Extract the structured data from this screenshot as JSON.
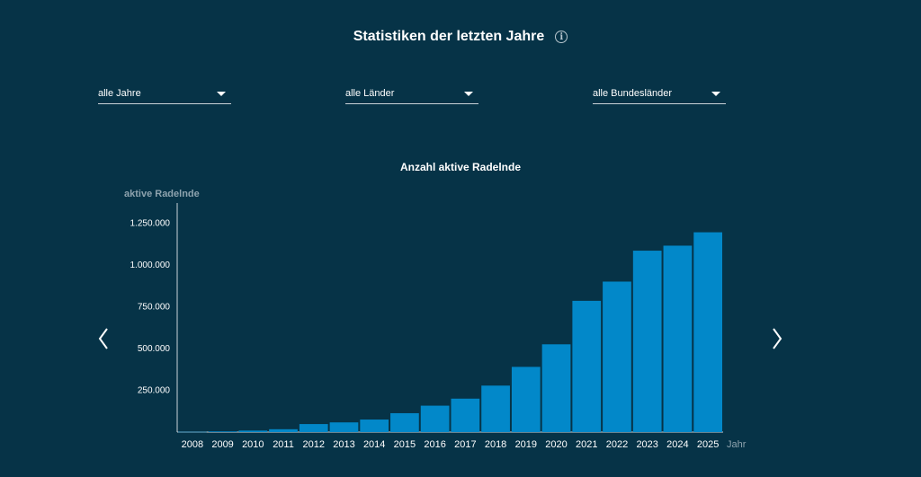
{
  "header": {
    "title": "Statistiken der letzten Jahre",
    "info_icon": "info-icon"
  },
  "filters": {
    "year": "alle Jahre",
    "country": "alle Länder",
    "state": "alle Bundesländer"
  },
  "nav": {
    "prev_icon": "chevron-left-icon",
    "next_icon": "chevron-right-icon"
  },
  "colors": {
    "background": "#063347",
    "bar": "#0288c9"
  },
  "chart_data": {
    "type": "bar",
    "title": "Anzahl aktive Radelnde",
    "ylabel": "aktive Radelnde",
    "xlabel": "Jahr",
    "categories": [
      "2008",
      "2009",
      "2010",
      "2011",
      "2012",
      "2013",
      "2014",
      "2015",
      "2016",
      "2017",
      "2018",
      "2019",
      "2020",
      "2021",
      "2022",
      "2023",
      "2024",
      "2025"
    ],
    "values": [
      1500,
      4000,
      9000,
      17000,
      48000,
      58000,
      75000,
      113000,
      158000,
      200000,
      278000,
      390000,
      525000,
      785000,
      900000,
      1085000,
      1115000,
      1195000
    ],
    "yticks": [
      250000,
      500000,
      750000,
      1000000,
      1250000
    ],
    "ytick_labels": [
      "250.000",
      "500.000",
      "750.000",
      "1.000.000",
      "1.250.000"
    ],
    "ylim": [
      0,
      1370000
    ],
    "grid": false,
    "legend": "none"
  }
}
